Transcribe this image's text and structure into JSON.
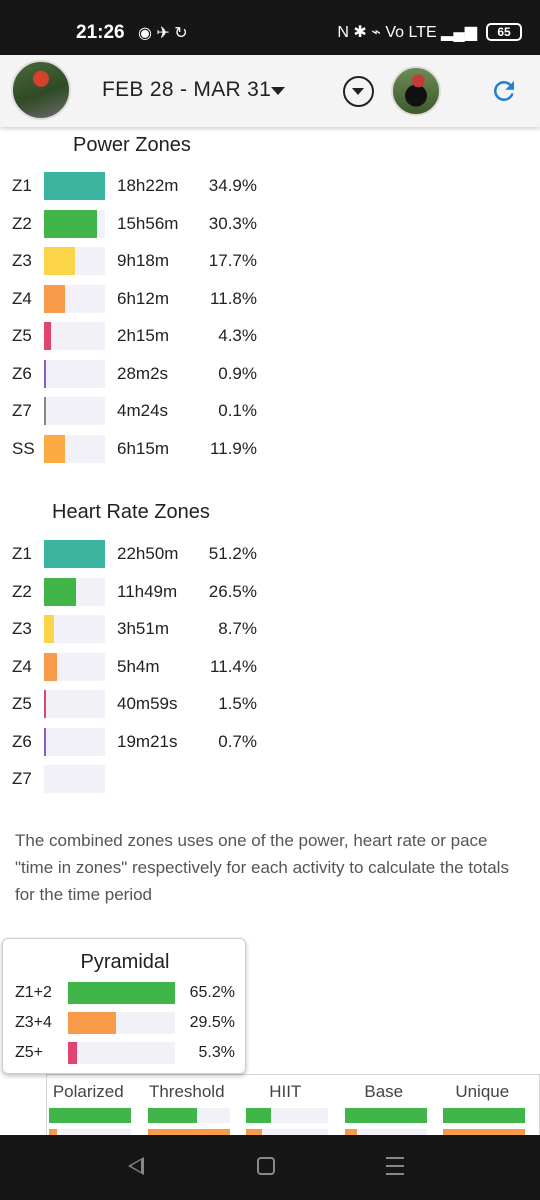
{
  "status_bar": {
    "time": "21:26",
    "left_icons": "◉ ✈ ↻",
    "right_icons": "N ✱ ⌁ Vo LTE ▂▄▆",
    "battery": "65"
  },
  "header": {
    "date_range": "FEB 28 - MAR 31"
  },
  "power_zones": {
    "title": "Power Zones",
    "rows": [
      {
        "zone": "Z1",
        "time": "18h22m",
        "pct": "34.9%",
        "fraction": 1.0,
        "color": "#3bb5a0"
      },
      {
        "zone": "Z2",
        "time": "15h56m",
        "pct": "30.3%",
        "fraction": 0.87,
        "color": "#3fb54a"
      },
      {
        "zone": "Z3",
        "time": "9h18m",
        "pct": "17.7%",
        "fraction": 0.51,
        "color": "#fbd44a"
      },
      {
        "zone": "Z4",
        "time": "6h12m",
        "pct": "11.8%",
        "fraction": 0.34,
        "color": "#f79a4a"
      },
      {
        "zone": "Z5",
        "time": "2h15m",
        "pct": "4.3%",
        "fraction": 0.12,
        "color": "#e0446f"
      },
      {
        "zone": "Z6",
        "time": "28m2s",
        "pct": "0.9%",
        "fraction": 0.03,
        "color": "#8a5cc4"
      },
      {
        "zone": "Z7",
        "time": "4m24s",
        "pct": "0.1%",
        "fraction": 0.005,
        "color": "#888888"
      },
      {
        "zone": "SS",
        "time": "6h15m",
        "pct": "11.9%",
        "fraction": 0.34,
        "color": "#fbaa44"
      }
    ]
  },
  "heart_rate_zones": {
    "title": "Heart Rate Zones",
    "rows": [
      {
        "zone": "Z1",
        "time": "22h50m",
        "pct": "51.2%",
        "fraction": 1.0,
        "color": "#3bb5a0"
      },
      {
        "zone": "Z2",
        "time": "11h49m",
        "pct": "26.5%",
        "fraction": 0.52,
        "color": "#3fb54a"
      },
      {
        "zone": "Z3",
        "time": "3h51m",
        "pct": "8.7%",
        "fraction": 0.17,
        "color": "#fbd44a"
      },
      {
        "zone": "Z4",
        "time": "5h4m",
        "pct": "11.4%",
        "fraction": 0.22,
        "color": "#f79a4a"
      },
      {
        "zone": "Z5",
        "time": "40m59s",
        "pct": "1.5%",
        "fraction": 0.03,
        "color": "#e0446f"
      },
      {
        "zone": "Z6",
        "time": "19m21s",
        "pct": "0.7%",
        "fraction": 0.015,
        "color": "#8a5cc4"
      },
      {
        "zone": "Z7",
        "time": "",
        "pct": "",
        "fraction": 0,
        "color": "#888888"
      }
    ]
  },
  "description": "The combined zones uses one of the power, heart rate or pace \"time in zones\" respectively for each activity to calculate the totals for the time period",
  "pyramidal": {
    "title": "Pyramidal",
    "rows": [
      {
        "label": "Z1+2",
        "pct": "65.2%",
        "fraction": 1.0,
        "color": "#3fb54a"
      },
      {
        "label": "Z3+4",
        "pct": "29.5%",
        "fraction": 0.45,
        "color": "#f79a4a"
      },
      {
        "label": "Z5+",
        "pct": "5.3%",
        "fraction": 0.08,
        "color": "#e0446f"
      }
    ]
  },
  "models": [
    {
      "label": "Polarized",
      "fraction": 1.0,
      "fraction2": 0.1
    },
    {
      "label": "Threshold",
      "fraction": 0.6,
      "fraction2": 1.0
    },
    {
      "label": "HIIT",
      "fraction": 0.3,
      "fraction2": 0.2
    },
    {
      "label": "Base",
      "fraction": 1.0,
      "fraction2": 0.15
    },
    {
      "label": "Unique",
      "fraction": 1.0,
      "fraction2": 1.0
    }
  ]
}
